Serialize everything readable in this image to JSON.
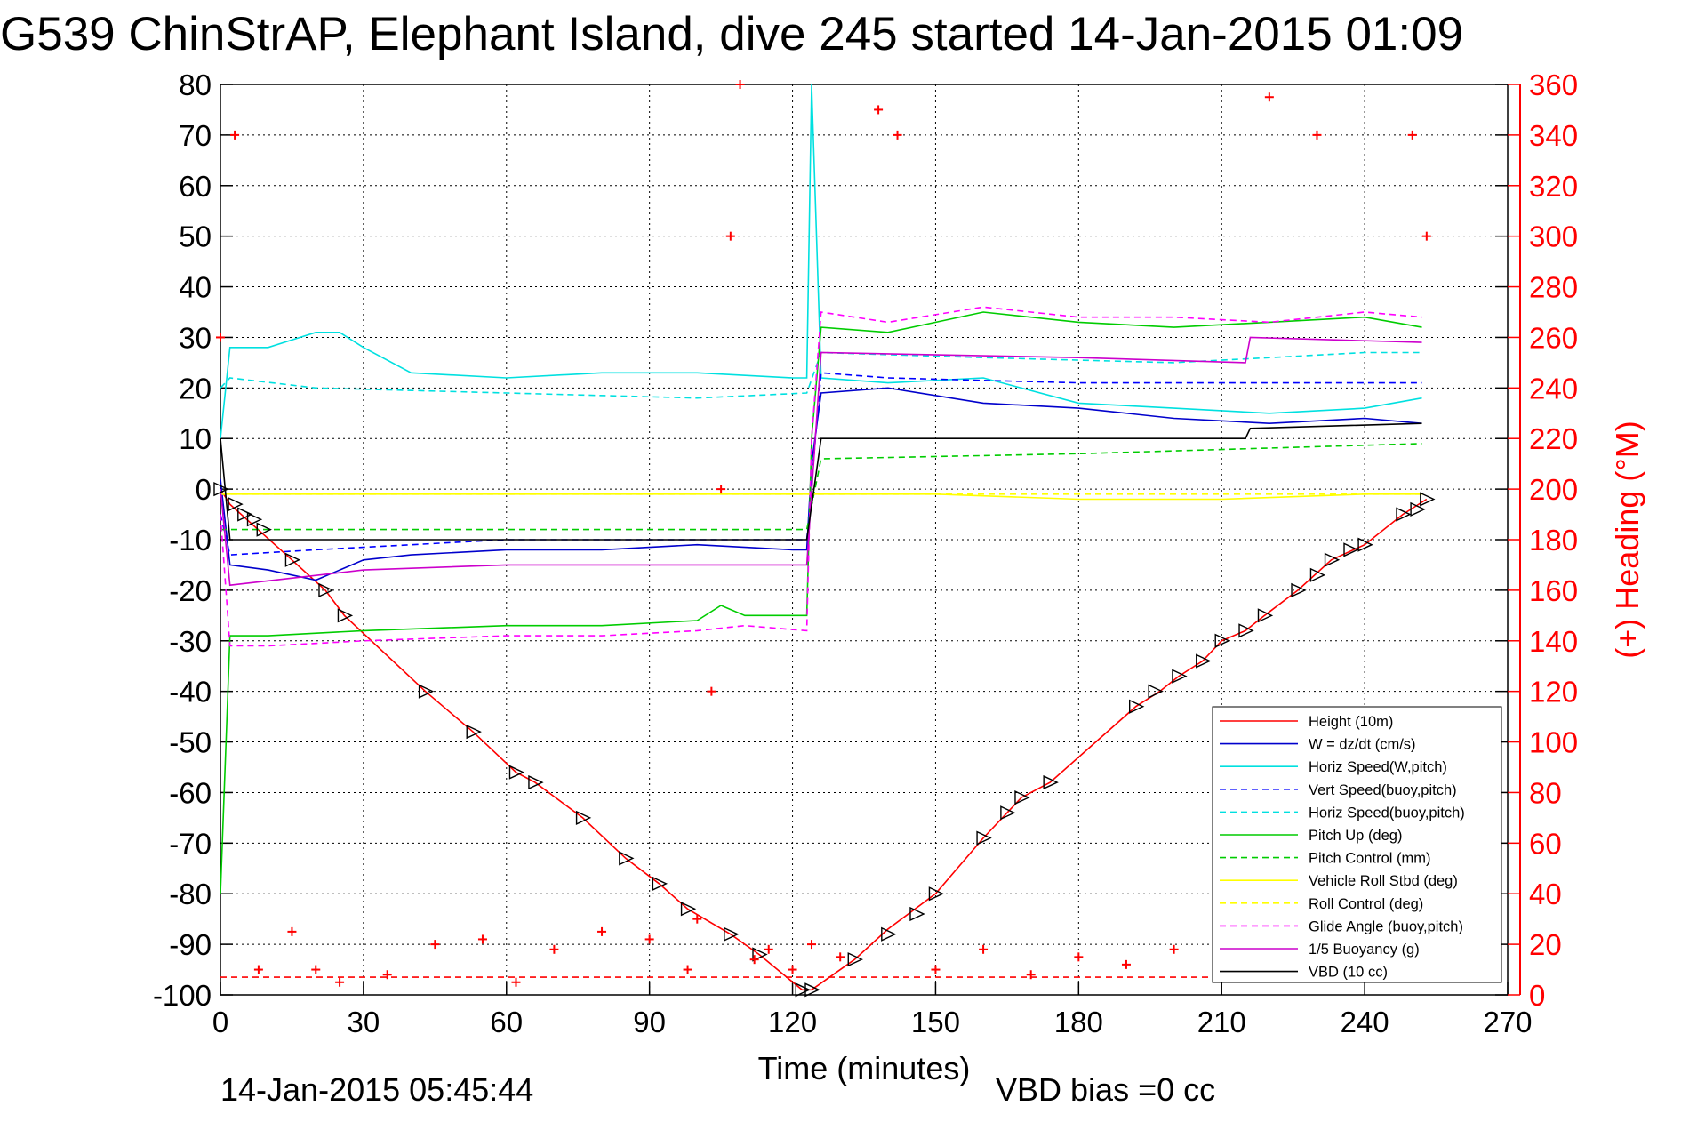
{
  "title": "G539 ChinStrAP, Elephant Island, dive 245 started 14-Jan-2015 01:09",
  "footer": {
    "timestamp": "14-Jan-2015 05:45:44",
    "vbd_bias": "VBD bias =0 cc"
  },
  "chart_data": {
    "type": "line",
    "xlabel": "Time (minutes)",
    "ylabel_right": "(+) Heading (°M)",
    "xlim": [
      0,
      270
    ],
    "ylim": [
      -100,
      80
    ],
    "ylim_right": [
      0,
      360
    ],
    "x_ticks": [
      "0",
      "30",
      "60",
      "90",
      "120",
      "150",
      "180",
      "210",
      "240",
      "270"
    ],
    "y_ticks": [
      "80",
      "70",
      "60",
      "50",
      "40",
      "30",
      "20",
      "10",
      "0",
      "-10",
      "-20",
      "-30",
      "-40",
      "-50",
      "-60",
      "-70",
      "-80",
      "-90",
      "-100"
    ],
    "y_ticks_right": [
      "360",
      "340",
      "320",
      "300",
      "280",
      "260",
      "240",
      "220",
      "200",
      "180",
      "160",
      "140",
      "120",
      "100",
      "80",
      "60",
      "40",
      "20",
      "0"
    ],
    "grid": true,
    "legend_position": "bottom-right",
    "legend": [
      "Height (10m)",
      "W = dz/dt (cm/s)",
      "Horiz Speed(W,pitch)",
      "Vert Speed(buoy,pitch)",
      "Horiz Speed(buoy,pitch)",
      "Pitch Up (deg)",
      "Pitch Control (mm)",
      "Vehicle Roll Stbd (deg)",
      "Roll Control (deg)",
      "Glide Angle (buoy,pitch)",
      "1/5 Buoyancy (g)",
      "VBD (10 cc)"
    ],
    "series": [
      {
        "name": "Height (10m)",
        "color": "#ff0000",
        "style": "solid",
        "x": [
          0,
          2,
          15,
          22,
          26,
          43,
          53,
          62,
          66,
          76,
          85,
          92,
          98,
          107,
          113,
          122,
          124,
          133,
          140,
          150,
          160,
          168,
          174,
          192,
          197,
          201,
          206,
          210,
          215,
          219,
          226,
          233,
          240,
          248,
          253
        ],
        "y": [
          0,
          -3,
          -14,
          -20,
          -25,
          -40,
          -48,
          -56,
          -58,
          -65,
          -73,
          -78,
          -83,
          -88,
          -92,
          -99,
          -99,
          -93,
          -87,
          -80,
          -69,
          -61,
          -58,
          -43,
          -40,
          -37,
          -34,
          -30,
          -28,
          -25,
          -20,
          -14,
          -11,
          -5,
          -2
        ]
      },
      {
        "name": "W = dz/dt (cm/s)",
        "color": "#0000cc",
        "style": "solid",
        "x": [
          0,
          2,
          10,
          20,
          30,
          40,
          60,
          80,
          100,
          120,
          123,
          124,
          126,
          140,
          160,
          180,
          200,
          220,
          240,
          252
        ],
        "y": [
          2,
          -15,
          -16,
          -18,
          -14,
          -13,
          -12,
          -12,
          -11,
          -12,
          -12,
          5,
          19,
          20,
          17,
          16,
          14,
          13,
          14,
          13
        ]
      },
      {
        "name": "Horiz Speed(W,pitch)",
        "color": "#00e0e0",
        "style": "solid",
        "x": [
          0,
          2,
          10,
          20,
          25,
          30,
          40,
          60,
          80,
          100,
          120,
          123,
          124,
          126,
          140,
          160,
          180,
          200,
          220,
          240,
          252
        ],
        "y": [
          10,
          28,
          28,
          31,
          31,
          28,
          23,
          22,
          23,
          23,
          22,
          22,
          80,
          22,
          21,
          22,
          17,
          16,
          15,
          16,
          18
        ]
      },
      {
        "name": "Vert Speed(buoy,pitch)",
        "color": "#0000ff",
        "style": "dashed",
        "x": [
          0,
          2,
          20,
          60,
          100,
          123,
          126,
          140,
          180,
          220,
          252
        ],
        "y": [
          -5,
          -13,
          -12,
          -10,
          -10,
          -10,
          23,
          22,
          21,
          21,
          21
        ]
      },
      {
        "name": "Horiz Speed(buoy,pitch)",
        "color": "#00e0e0",
        "style": "dashed",
        "x": [
          0,
          2,
          20,
          60,
          100,
          123,
          126,
          160,
          200,
          240,
          252
        ],
        "y": [
          20,
          22,
          20,
          19,
          18,
          19,
          27,
          26,
          25,
          27,
          27
        ]
      },
      {
        "name": "Pitch Up (deg)",
        "color": "#00cc00",
        "style": "solid",
        "x": [
          0,
          2,
          10,
          30,
          60,
          80,
          100,
          105,
          110,
          123,
          124,
          126,
          140,
          160,
          180,
          200,
          220,
          240,
          252
        ],
        "y": [
          -80,
          -29,
          -29,
          -28,
          -27,
          -27,
          -26,
          -23,
          -25,
          -25,
          10,
          32,
          31,
          35,
          33,
          32,
          33,
          34,
          32
        ]
      },
      {
        "name": "Pitch Control (mm)",
        "color": "#00cc00",
        "style": "dashed",
        "x": [
          0,
          2,
          60,
          123,
          126,
          180,
          252
        ],
        "y": [
          -8,
          -8,
          -8,
          -8,
          6,
          7,
          9
        ]
      },
      {
        "name": "Vehicle Roll Stbd (deg)",
        "color": "#ffff00",
        "style": "solid",
        "x": [
          0,
          10,
          30,
          60,
          90,
          123,
          150,
          180,
          210,
          240,
          252
        ],
        "y": [
          -1,
          -1,
          -1,
          -1,
          -1,
          -1,
          -1,
          -2,
          -2,
          -1,
          -1
        ]
      },
      {
        "name": "Roll Control (deg)",
        "color": "#ffff00",
        "style": "dashed",
        "x": [
          0,
          10,
          30,
          60,
          90,
          123,
          150,
          180,
          210,
          240,
          252
        ],
        "y": [
          -1,
          -1,
          -1,
          -1,
          -1,
          -1,
          -1,
          -1,
          -1,
          -1,
          -1
        ]
      },
      {
        "name": "Glide Angle (buoy,pitch)",
        "color": "#ff00ff",
        "style": "dashed",
        "x": [
          0,
          2,
          10,
          30,
          60,
          80,
          100,
          110,
          123,
          124,
          126,
          140,
          160,
          180,
          200,
          220,
          240,
          252
        ],
        "y": [
          -5,
          -31,
          -31,
          -30,
          -29,
          -29,
          -28,
          -27,
          -28,
          10,
          35,
          33,
          36,
          34,
          34,
          33,
          35,
          34
        ]
      },
      {
        "name": "1/5 Buoyancy (g)",
        "color": "#cc00cc",
        "style": "solid",
        "x": [
          0,
          2,
          30,
          60,
          90,
          123,
          126,
          180,
          215,
          216,
          252
        ],
        "y": [
          0,
          -19,
          -16,
          -15,
          -15,
          -15,
          27,
          26,
          25,
          30,
          29
        ]
      },
      {
        "name": "VBD (10 cc)",
        "color": "#000000",
        "style": "solid",
        "x": [
          0,
          2,
          123,
          126,
          215,
          216,
          252
        ],
        "y": [
          10,
          -10,
          -10,
          10,
          10,
          12,
          13
        ]
      },
      {
        "name": "Heading",
        "color": "#ff0000",
        "axis": "right",
        "style": "markers",
        "x": [
          0,
          3,
          8,
          15,
          20,
          25,
          35,
          45,
          55,
          62,
          70,
          80,
          90,
          98,
          100,
          103,
          105,
          107,
          109,
          112,
          115,
          120,
          124,
          130,
          138,
          142,
          150,
          160,
          170,
          180,
          190,
          200,
          210,
          220,
          230,
          240,
          250,
          253
        ],
        "y": [
          260,
          340,
          10,
          25,
          10,
          5,
          8,
          20,
          22,
          5,
          18,
          25,
          22,
          10,
          30,
          120,
          200,
          300,
          360,
          14,
          18,
          10,
          20,
          15,
          350,
          340,
          10,
          18,
          8,
          15,
          12,
          18,
          10,
          355,
          340,
          18,
          340,
          300
        ]
      },
      {
        "name": "Heading ref",
        "color": "#ff0000",
        "axis": "right",
        "style": "dashed",
        "x": [
          0,
          253
        ],
        "y": [
          7,
          7
        ]
      }
    ],
    "markers": {
      "color": "#000000",
      "x": [
        0,
        3,
        5,
        7,
        9,
        15,
        22,
        26,
        43,
        53,
        62,
        66,
        76,
        85,
        92,
        98,
        107,
        113,
        122,
        124,
        133,
        140,
        146,
        150,
        160,
        165,
        168,
        174,
        192,
        196,
        201,
        206,
        210,
        215,
        219,
        226,
        230,
        233,
        237,
        240,
        248,
        251,
        253
      ],
      "y": [
        0,
        -3,
        -5,
        -6,
        -8,
        -14,
        -20,
        -25,
        -40,
        -48,
        -56,
        -58,
        -65,
        -73,
        -78,
        -83,
        -88,
        -92,
        -99,
        -99,
        -93,
        -88,
        -84,
        -80,
        -69,
        -64,
        -61,
        -58,
        -43,
        -40,
        -37,
        -34,
        -30,
        -28,
        -25,
        -20,
        -17,
        -14,
        -12,
        -11,
        -5,
        -4,
        -2
      ]
    }
  }
}
